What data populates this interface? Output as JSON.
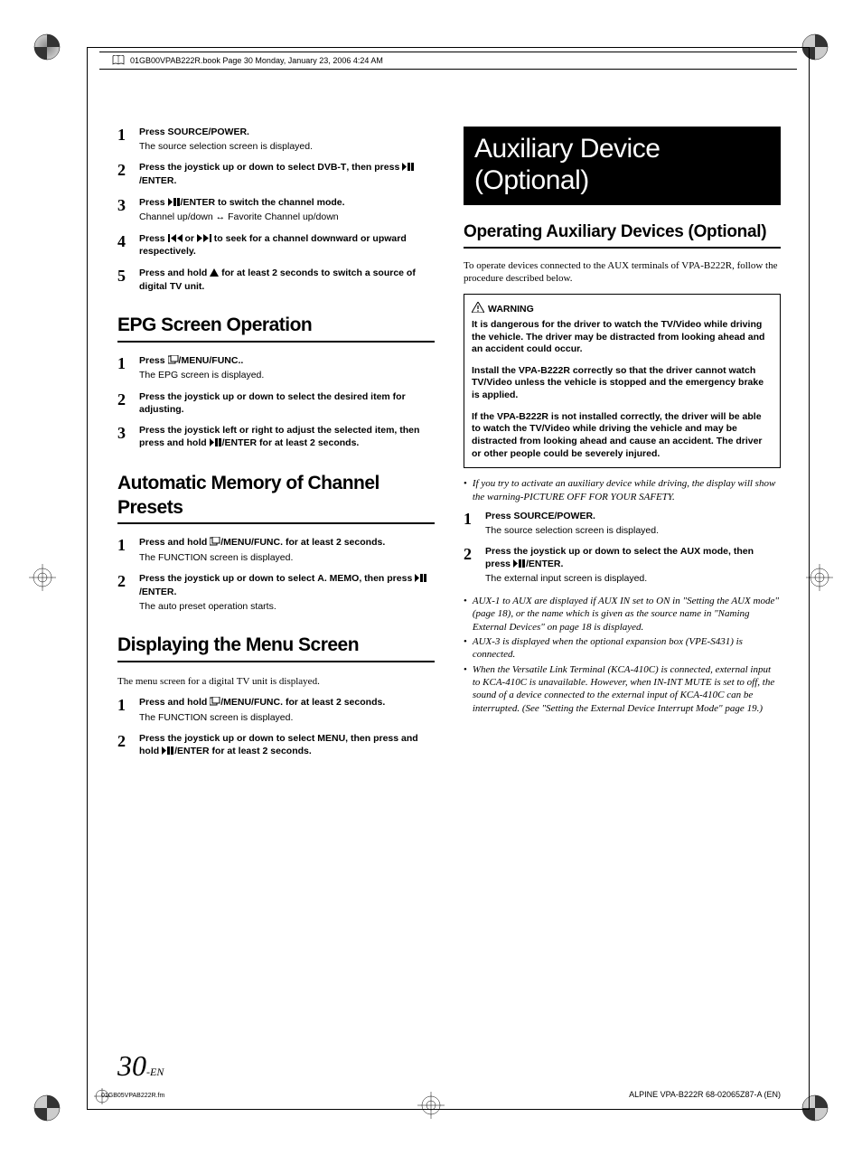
{
  "header": {
    "text": "01GB00VPAB222R.book  Page 30  Monday, January 23, 2006  4:24 AM"
  },
  "left": {
    "steps_top": [
      {
        "num": "1",
        "main": "Press <b>SOURCE/POWER</b>.",
        "note": "The source selection screen is displayed."
      },
      {
        "num": "2",
        "main": "Press the <b>joystick</b> up or down to select <b>DVB-T</b>, then press {play}<b>/ENTER</b>."
      },
      {
        "num": "3",
        "main": "Press {play}<b>/ENTER</b> to switch the channel mode.",
        "note": "Channel up/down ↔ Favorite Channel up/down"
      },
      {
        "num": "4",
        "main": "Press {prev} or {next} to seek for a channel downward or upward respectively."
      },
      {
        "num": "5",
        "main": "Press and hold {up} for at least 2 seconds to switch a source of digital TV unit."
      }
    ],
    "sec_epg": "EPG Screen Operation",
    "steps_epg": [
      {
        "num": "1",
        "main": "Press {menu}<b>/MENU/FUNC.</b>.",
        "note": "The EPG screen is displayed."
      },
      {
        "num": "2",
        "main": "Press the <b>joystick</b> up or down to select the desired item for adjusting."
      },
      {
        "num": "3",
        "main": "Press the <b>joystick</b> left or right to adjust the selected item, then press and hold {play}<b>/ENTER</b> for at least 2 seconds."
      }
    ],
    "sec_auto": "Automatic Memory of Channel Presets",
    "steps_auto": [
      {
        "num": "1",
        "main": "Press and hold {menu}<b>/MENU/FUNC.</b> for at least 2 seconds.",
        "note": "The FUNCTION screen is displayed."
      },
      {
        "num": "2",
        "main": "Press the <b>joystick</b> up or down to select <b>A. MEMO</b>, then press {play}<b>/ENTER</b>.",
        "note": "The auto preset operation starts."
      }
    ],
    "sec_menu": "Displaying the Menu Screen",
    "menu_intro": "The menu screen for a digital TV unit is displayed.",
    "steps_menu": [
      {
        "num": "1",
        "main": "Press and hold {menu}<b>/MENU/FUNC.</b> for at least 2 seconds.",
        "note": "The FUNCTION screen is displayed."
      },
      {
        "num": "2",
        "main": "Press the <b>joystick</b> up or down to select <b>MENU</b>, then press and hold {play}<b>/ENTER</b> for at least 2 seconds."
      }
    ]
  },
  "right": {
    "banner": "Auxiliary Device (Optional)",
    "subhead": "Operating Auxiliary Devices (Optional)",
    "intro": "To operate devices connected to the AUX terminals of VPA-B222R, follow the procedure described below.",
    "warn_title": "WARNING",
    "warn_paras": [
      "It is dangerous for the driver to watch the TV/Video while driving the vehicle. The driver may be distracted from looking ahead and an accident could occur.",
      "Install the VPA-B222R correctly so that the driver cannot watch TV/Video unless the vehicle is stopped and the emergency brake is applied.",
      "If the VPA-B222R is not installed correctly, the driver will be able to watch the TV/Video while driving the vehicle and may be distracted from looking ahead and cause an accident. The driver or other people could be severely injured."
    ],
    "bullets_pre": [
      "If you try to activate an auxiliary device while driving, the display will show the warning-PICTURE OFF FOR YOUR SAFETY."
    ],
    "steps": [
      {
        "num": "1",
        "main": "Press <b>SOURCE/POWER</b>.",
        "note": "The source selection screen is displayed."
      },
      {
        "num": "2",
        "main": "Press the <b>joystick</b> up or down to select the <b>AUX</b> mode, then press {play}<b>/ENTER</b>.",
        "note": "The external input screen is displayed."
      }
    ],
    "bullets_post": [
      "AUX-1 to AUX are displayed if AUX IN set to ON in \"Setting the AUX mode\" (page 18), or the name which is given as the source name in \"Naming External Devices\" on page 18 is displayed.",
      "AUX-3 is displayed when the optional expansion box (VPE-S431) is connected.",
      "When the Versatile Link Terminal (KCA-410C) is connected, external input to KCA-410C is unavailable. However, when IN-INT MUTE is set to off, the sound of a device connected to the external input of KCA-410C can be interrupted. (See \"Setting the External Device Interrupt Mode\" page 19.)"
    ]
  },
  "footer": {
    "page": "30",
    "page_suffix": "-EN",
    "file": "01GB05VPAB222R.fm",
    "model": "ALPINE VPA-B222R 68-02065Z87-A (EN)"
  },
  "icons": {
    "play": "<svg width='14' height='9' viewBox='0 0 14 9'><path d='M0 0 L5 4.5 L0 9 Z' fill='#000'/><path d='M6 0 L9 0 L9 9 L6 9 Z M10 0 L13 0 L13 9 L10 9 Z' fill='#000'/></svg>",
    "prev": "<svg width='16' height='9' viewBox='0 0 16 9'><rect x='0' y='0' width='2' height='9' fill='#000'/><path d='M9 0 L3 4.5 L9 9 Z' fill='#000'/><path d='M16 0 L10 4.5 L16 9 Z' fill='#000'/></svg>",
    "next": "<svg width='16' height='9' viewBox='0 0 16 9'><path d='M0 0 L6 4.5 L0 9 Z' fill='#000'/><path d='M7 0 L13 4.5 L7 9 Z' fill='#000'/><rect x='14' y='0' width='2' height='9' fill='#000'/></svg>",
    "up": "<svg width='10' height='9' viewBox='0 0 10 9'><path d='M5 0 L10 9 L0 9 Z' fill='#000'/></svg>",
    "menu": "<svg width='12' height='10' viewBox='0 0 12 10'><rect x='0' y='1' width='8' height='8' fill='none' stroke='#000' stroke-width='1'/><rect x='3' y='0' width='8' height='7' fill='#fff' stroke='#000' stroke-width='1'/></svg>",
    "warn": "<svg width='14' height='12' viewBox='0 0 14 12'><path d='M7 0 L14 12 L0 12 Z' fill='none' stroke='#000' stroke-width='1'/><line x1='7' y1='4' x2='7' y2='8' stroke='#000' stroke-width='1.2'/><circle cx='7' cy='10' r='0.8' fill='#000'/></svg>"
  }
}
